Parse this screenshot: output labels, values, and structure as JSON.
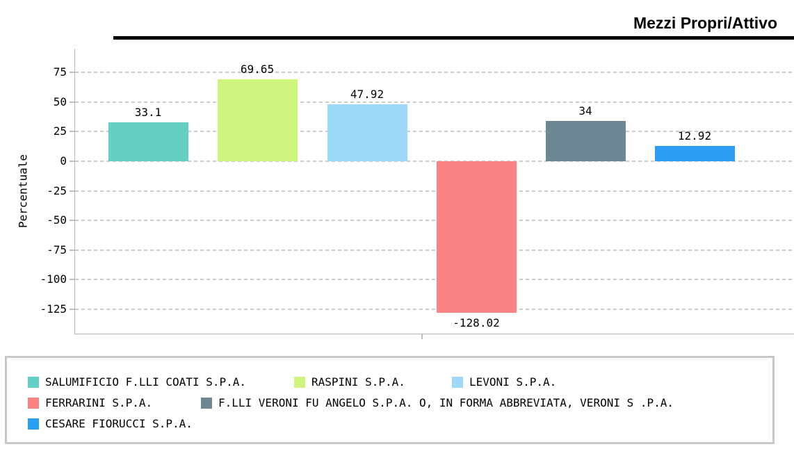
{
  "page": {
    "background": "#ffffff"
  },
  "chart_data": {
    "type": "bar",
    "title": "Mezzi Propri/Attivo",
    "ylabel": "Percentuale",
    "xlabel": "",
    "yticks": [
      75,
      50,
      25,
      0,
      -25,
      -50,
      -75,
      -100,
      -125
    ],
    "ylim": [
      -146,
      95
    ],
    "grid": "horizontal-dashed",
    "legend_position": "bottom-box",
    "bars": [
      {
        "name": "SALUMIFICIO F.LLI COATI S.P.A.",
        "value": 33.1,
        "label": "33.1",
        "color": "#63cfc5",
        "texture": "none"
      },
      {
        "name": "RASPINI S.P.A.",
        "value": 69.65,
        "label": "69.65",
        "color": "#cdf57e",
        "texture": "none"
      },
      {
        "name": "LEVONI S.P.A.",
        "value": 47.92,
        "label": "47.92",
        "color": "#9ed9f7",
        "texture": "dots"
      },
      {
        "name": "FERRARINI S.P.A.",
        "value": -128.02,
        "label": "-128.02",
        "color": "#fb8383",
        "texture": "none"
      },
      {
        "name": "F.LLI VERONI FU ANGELO S.P.A. O, IN FORMA ABBREVIATA, VERONI S .P.A.",
        "value": 34,
        "label": "34",
        "color": "#6d8794",
        "texture": "dots-warm"
      },
      {
        "name": "CESARE FIORUCCI S.P.A.",
        "value": 12.92,
        "label": "12.92",
        "color": "#2b9ef4",
        "texture": "none"
      }
    ]
  },
  "styles": {
    "grid_color": "#cbcbcb",
    "axis_color": "#b4b4b4",
    "legend_border_color": "#c8c8c8",
    "title_rule_color": "#000000",
    "text_color": "#000000"
  }
}
